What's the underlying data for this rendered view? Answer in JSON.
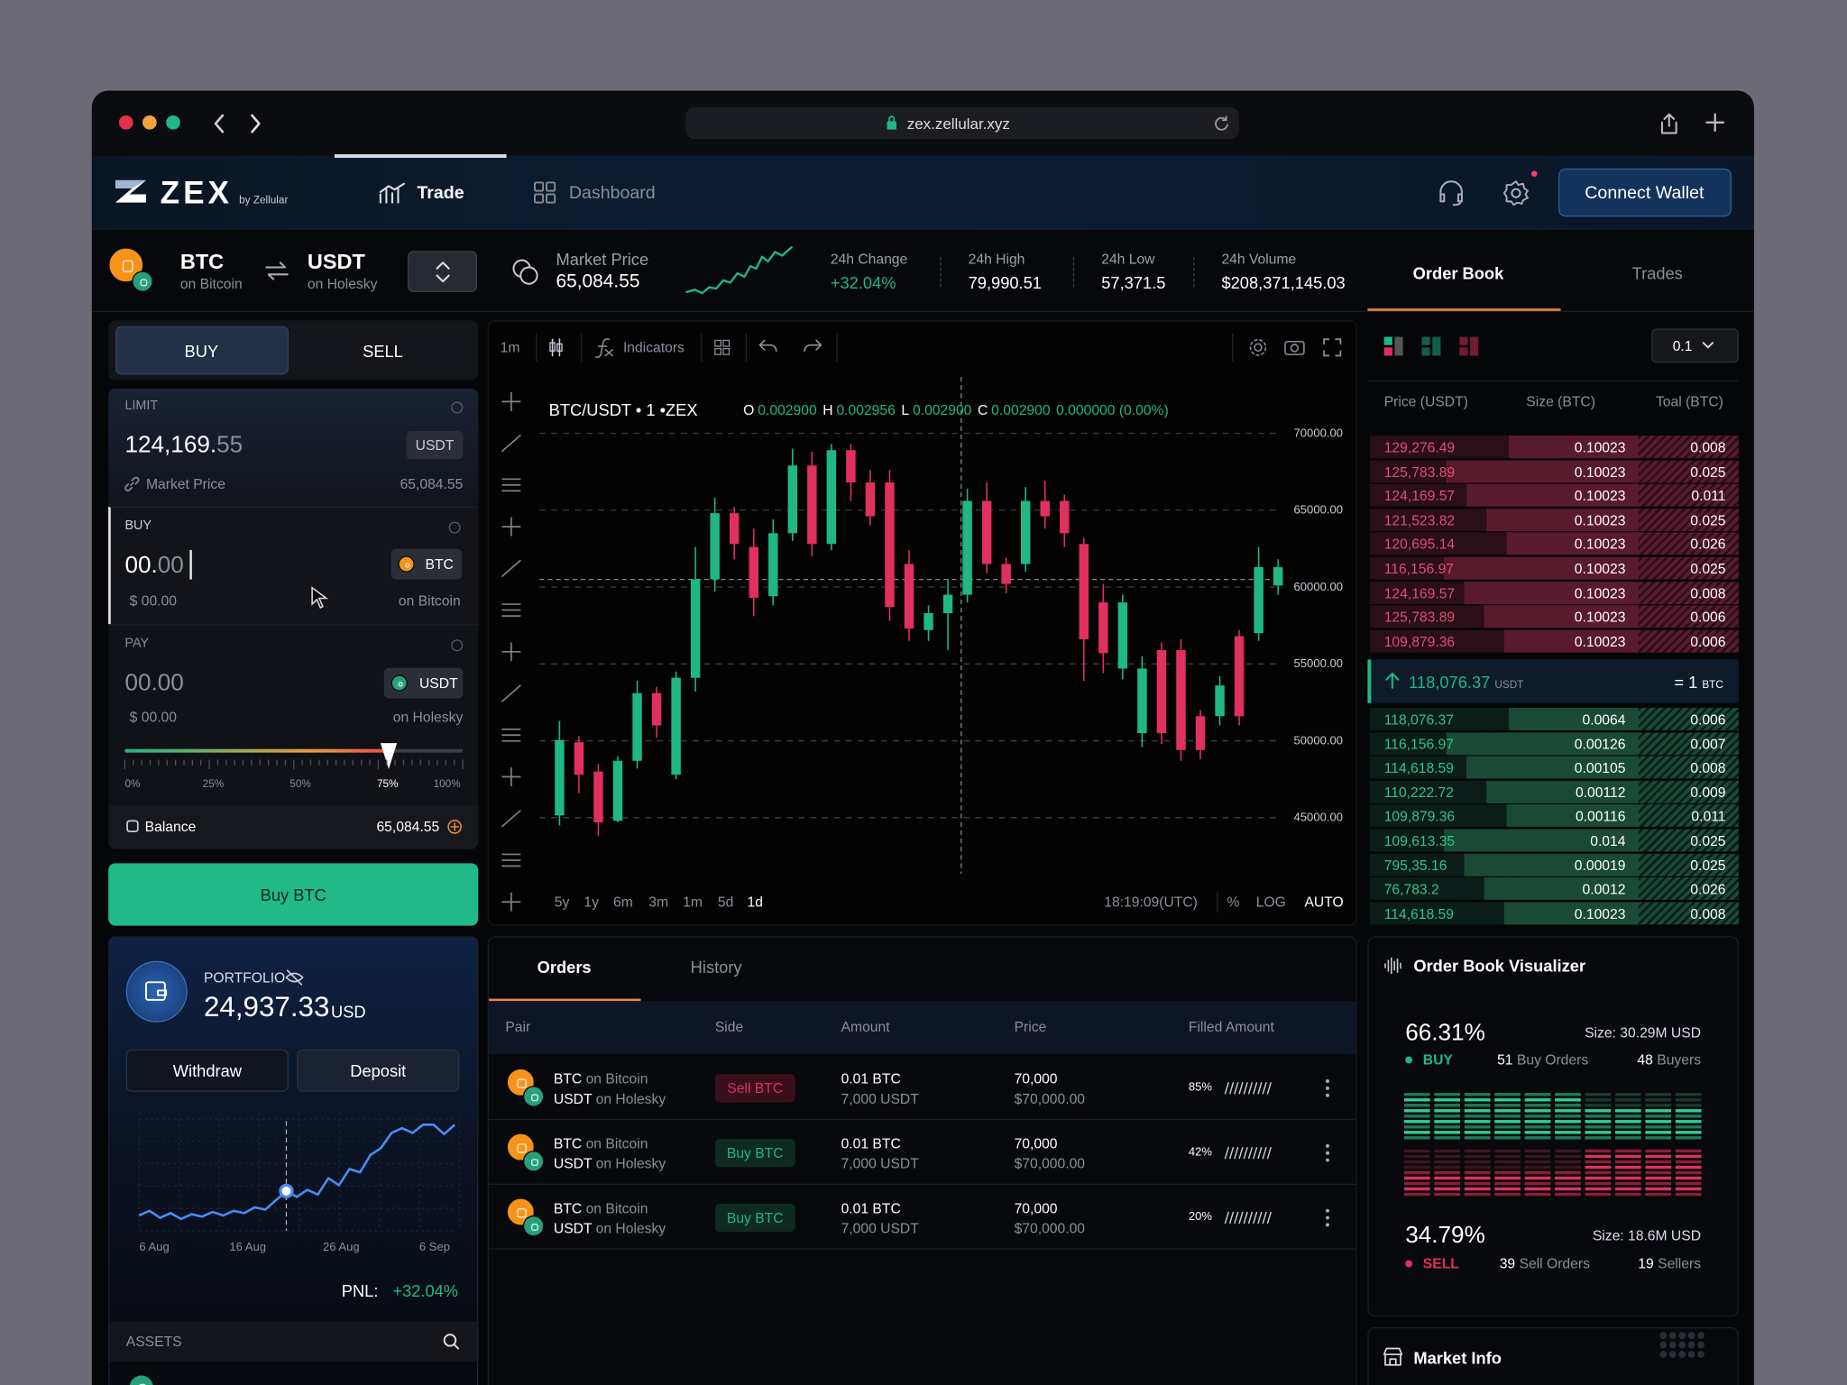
{
  "browser": {
    "url": "zex.zellular.xyz"
  },
  "nav": {
    "logo": "ZEX",
    "logo_sub": "by Zellular",
    "tabs": [
      "Trade",
      "Dashboard"
    ],
    "connect": "Connect Wallet"
  },
  "pair": {
    "base": "BTC",
    "base_net": "on Bitcoin",
    "quote": "USDT",
    "quote_net": "on Holesky"
  },
  "stats": [
    {
      "label": "Market Price",
      "value": "65,084.55"
    },
    {
      "label": "24h Change",
      "value": "+32.04%"
    },
    {
      "label": "24h High",
      "value": "79,990.51"
    },
    {
      "label": "24h Low",
      "value": "57,371.5"
    },
    {
      "label": "24h Volume",
      "value": "$208,371,145.03"
    }
  ],
  "side_tabs": [
    "Order Book",
    "Trades"
  ],
  "form": {
    "tabs": [
      "BUY",
      "SELL"
    ],
    "limit_label": "LIMIT",
    "limit_int": "124,169.",
    "limit_dec": "55",
    "limit_unit": "USDT",
    "market_price_label": "Market Price",
    "market_price": "65,084.55",
    "buy_label": "BUY",
    "buy_int": "00.",
    "buy_dec": "00",
    "buy_token": "BTC",
    "buy_usd": "$ 00.00",
    "buy_net": "on Bitcoin",
    "pay_label": "PAY",
    "pay_value": "00.00",
    "pay_token": "USDT",
    "pay_usd": "$ 00.00",
    "pay_net": "on Holesky",
    "slider_labels": [
      "0%",
      "25%",
      "50%",
      "75%",
      "100%"
    ],
    "balance_label": "Balance",
    "balance": "65,084.55",
    "submit": "Buy BTC"
  },
  "portfolio": {
    "label": "PORTFOLIO",
    "value": "24,937.33",
    "unit": "USD",
    "withdraw": "Withdraw",
    "deposit": "Deposit",
    "chart": {
      "x_labels": [
        "6 Aug",
        "16 Aug",
        "26 Aug",
        "6 Sep"
      ],
      "values": [
        12,
        16,
        10,
        14,
        9,
        13,
        11,
        15,
        12,
        16,
        14,
        19,
        17,
        25,
        33,
        28,
        34,
        30,
        44,
        38,
        52,
        49,
        64,
        70,
        83,
        87,
        83,
        90,
        90,
        82,
        90
      ]
    },
    "pnl_label": "PNL:",
    "pnl": "+32.04%",
    "assets": "ASSETS"
  },
  "chart_toolbar": {
    "interval": "1m",
    "indicators": "Indicators"
  },
  "chart_data": {
    "type": "candlestick",
    "title": "BTC/USDT • 1 •ZEX",
    "legend": [
      {
        "key": "O",
        "value": "0.002900"
      },
      {
        "key": "H",
        "value": "0.002956"
      },
      {
        "key": "L",
        "value": "0.002900"
      },
      {
        "key": "C",
        "value": "0.002900"
      }
    ],
    "legend_change": "0.000000 (0.00%)",
    "open": [
      45150,
      49900,
      48000,
      44800,
      48700,
      53100,
      47800,
      54100,
      60500,
      64800,
      62600,
      59400,
      63500,
      67900,
      62800,
      68900,
      66800,
      66800,
      61500,
      57200,
      58300,
      59500,
      65600,
      61500,
      61500,
      65600,
      65600,
      62800,
      59000,
      54700,
      50500,
      55900,
      55900,
      51600,
      51600,
      56800,
      57000,
      60100
    ],
    "high": [
      51300,
      50300,
      48500,
      49000,
      53900,
      53500,
      54500,
      62600,
      65800,
      65200,
      63800,
      64400,
      69000,
      68800,
      69300,
      69300,
      67600,
      67600,
      62400,
      58800,
      60500,
      66400,
      66800,
      61900,
      66500,
      66900,
      66000,
      63200,
      60200,
      59500,
      55500,
      56400,
      56600,
      52000,
      54200,
      57200,
      62600,
      61800
    ],
    "low": [
      44500,
      46600,
      43800,
      44700,
      48200,
      50200,
      47500,
      53200,
      59700,
      61800,
      58100,
      58800,
      63000,
      62000,
      62400,
      65600,
      64000,
      57800,
      56500,
      56500,
      55900,
      59000,
      60900,
      59600,
      61000,
      63800,
      62600,
      53900,
      54400,
      54000,
      49600,
      49800,
      48700,
      48800,
      51000,
      51000,
      56500,
      59500
    ],
    "close": [
      50050,
      47800,
      44700,
      48700,
      53100,
      51000,
      54100,
      60500,
      64800,
      62800,
      59300,
      63500,
      67900,
      62800,
      68900,
      66800,
      64600,
      58700,
      57300,
      58300,
      59500,
      65600,
      61500,
      60200,
      65600,
      64600,
      63500,
      56600,
      55700,
      59000,
      54700,
      50500,
      49400,
      49400,
      53600,
      51600,
      61300,
      61300
    ],
    "up_color": "#1fb785",
    "down_color": "#e0305f",
    "ylim": [
      41500,
      72900
    ],
    "yticks": [
      {
        "value": 45000,
        "label": "45000.00"
      },
      {
        "value": 50000,
        "label": "50000.00"
      },
      {
        "value": 55000,
        "label": "55000.00"
      },
      {
        "value": 60000,
        "label": "60000.00"
      },
      {
        "value": 65000,
        "label": "65000.00"
      },
      {
        "value": 70000,
        "label": "70000.00"
      }
    ],
    "grid": true
  },
  "chart_footer": {
    "ranges": [
      "5y",
      "1y",
      "6m",
      "3m",
      "1m",
      "5d",
      "1d"
    ],
    "time": "18:19:09(UTC)",
    "options": [
      "%",
      "LOG",
      "AUTO"
    ]
  },
  "orders": {
    "tabs": [
      "Orders",
      "History"
    ],
    "columns": [
      "Pair",
      "Side",
      "Amount",
      "Price",
      "Filled Amount"
    ],
    "rows": [
      {
        "base": "BTC",
        "base_net": "on Bitcoin",
        "quote": "USDT",
        "quote_net": "on Holesky",
        "side": "Sell BTC",
        "amount": "0.01 BTC",
        "amount_sub": "7,000 USDT",
        "price": "70,000",
        "price_sub": "$70,000.00",
        "filled": "85%"
      },
      {
        "base": "BTC",
        "base_net": "on Bitcoin",
        "quote": "USDT",
        "quote_net": "on Holesky",
        "side": "Buy BTC",
        "amount": "0.01 BTC",
        "amount_sub": "7,000 USDT",
        "price": "70,000",
        "price_sub": "$70,000.00",
        "filled": "42%"
      },
      {
        "base": "BTC",
        "base_net": "on Bitcoin",
        "quote": "USDT",
        "quote_net": "on Holesky",
        "side": "Buy BTC",
        "amount": "0.01 BTC",
        "amount_sub": "7,000 USDT",
        "price": "70,000",
        "price_sub": "$70,000.00",
        "filled": "20%"
      }
    ]
  },
  "order_book": {
    "size": "0.1",
    "columns": [
      "Price (USDT)",
      "Size (BTC)",
      "Toal (BTC)"
    ],
    "asks": [
      [
        "129,276.49",
        "0.10023",
        "0.008"
      ],
      [
        "125,783.89",
        "0.10023",
        "0.025"
      ],
      [
        "124,169.57",
        "0.10023",
        "0.011"
      ],
      [
        "121,523.82",
        "0.10023",
        "0.025"
      ],
      [
        "120,695.14",
        "0.10023",
        "0.026"
      ],
      [
        "116,156.97",
        "0.10023",
        "0.025"
      ],
      [
        "124,169.57",
        "0.10023",
        "0.008"
      ],
      [
        "125,783.89",
        "0.10023",
        "0.006"
      ],
      [
        "109,879.36",
        "0.10023",
        "0.006"
      ]
    ],
    "mid": "118,076.37",
    "mid_unit": "USDT",
    "mid_eq": "= 1",
    "mid_eq_unit": "BTC",
    "bids": [
      [
        "118,076.37",
        "0.0064",
        "0.006"
      ],
      [
        "116,156.97",
        "0.00126",
        "0.007"
      ],
      [
        "114,618.59",
        "0.00105",
        "0.008"
      ],
      [
        "110,222.72",
        "0.00112",
        "0.009"
      ],
      [
        "109,879.36",
        "0.00116",
        "0.011"
      ],
      [
        "109,613.35",
        "0.014",
        "0.025"
      ],
      [
        "795,35.16",
        "0.00019",
        "0.025"
      ],
      [
        "76,783.2",
        "0.0012",
        "0.026"
      ],
      [
        "114,618.59",
        "0.10023",
        "0.008"
      ]
    ]
  },
  "visualizer": {
    "title": "Order Book Visualizer",
    "buy": {
      "pct": "66.31%",
      "size": "Size: 30.29M USD",
      "label": "BUY",
      "orders": "51",
      "orders_label": "Buy Orders",
      "people": "48",
      "people_label": "Buyers"
    },
    "sell": {
      "pct": "34.79%",
      "size": "Size: 18.6M USD",
      "label": "SELL",
      "orders": "39",
      "orders_label": "Sell Orders",
      "people": "19",
      "people_label": "Sellers"
    }
  },
  "market_info": "Market Info"
}
